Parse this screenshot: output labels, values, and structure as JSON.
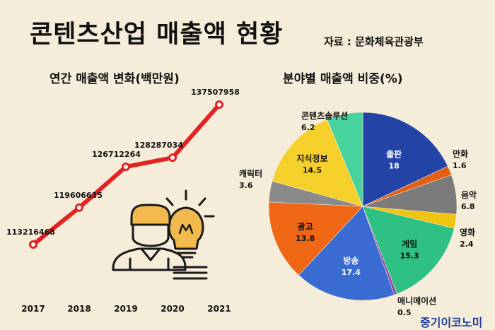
{
  "header": {
    "title": "콘텐츠산업 매출액 현황",
    "source": "자료 : 문화체육관광부"
  },
  "brand": "중기이코노미",
  "chart_data": [
    {
      "type": "line",
      "title": "연간 매출액 변화(백만원)",
      "x": [
        "2017",
        "2018",
        "2019",
        "2020",
        "2021"
      ],
      "series": [
        {
          "values": [
            113216468,
            119606635,
            126712264,
            128287034,
            137507958
          ],
          "labels": [
            "113216468",
            "119606635",
            "126712264",
            "128287034",
            "137507958"
          ],
          "color": "#e42222"
        }
      ],
      "grid": false
    },
    {
      "type": "pie",
      "title": "분야별 매출액 비중(%)",
      "slices": [
        {
          "name": "출판",
          "value": 18,
          "label": "18",
          "color": "#2343a7",
          "label_color": "#ffffff"
        },
        {
          "name": "만화",
          "value": 1.6,
          "label": "1.6",
          "color": "#e35d13",
          "label_color": "#111111"
        },
        {
          "name": "음악",
          "value": 6.8,
          "label": "6.8",
          "color": "#7b7b7b",
          "label_color": "#111111"
        },
        {
          "name": "영화",
          "value": 2.4,
          "label": "2.4",
          "color": "#f1c40f",
          "label_color": "#111111"
        },
        {
          "name": "게임",
          "value": 15.3,
          "label": "15.3",
          "color": "#2fc183",
          "label_color": "#111111"
        },
        {
          "name": "애니메이션",
          "value": 0.5,
          "label": "0.5",
          "color": "#8e44ad",
          "label_color": "#111111"
        },
        {
          "name": "방송",
          "value": 17.4,
          "label": "17.4",
          "color": "#3a6bd2",
          "label_color": "#ffffff"
        },
        {
          "name": "광고",
          "value": 13.8,
          "label": "13.8",
          "color": "#ef6615",
          "label_color": "#111111"
        },
        {
          "name": "캐릭터",
          "value": 3.6,
          "label": "3.6",
          "color": "#8a8a8a",
          "label_color": "#111111"
        },
        {
          "name": "지식정보",
          "value": 14.5,
          "label": "14.5",
          "color": "#f5d02a",
          "label_color": "#111111"
        },
        {
          "name": "콘텐츠솔루션",
          "value": 6.2,
          "label": "6.2",
          "color": "#48d39e",
          "label_color": "#111111"
        }
      ]
    }
  ],
  "illustration": {
    "icon": "person-lightbulb-icon",
    "colors": {
      "hair": "#f2b94d",
      "bulb": "#f2b94d",
      "outline": "#1a1a1a"
    }
  }
}
